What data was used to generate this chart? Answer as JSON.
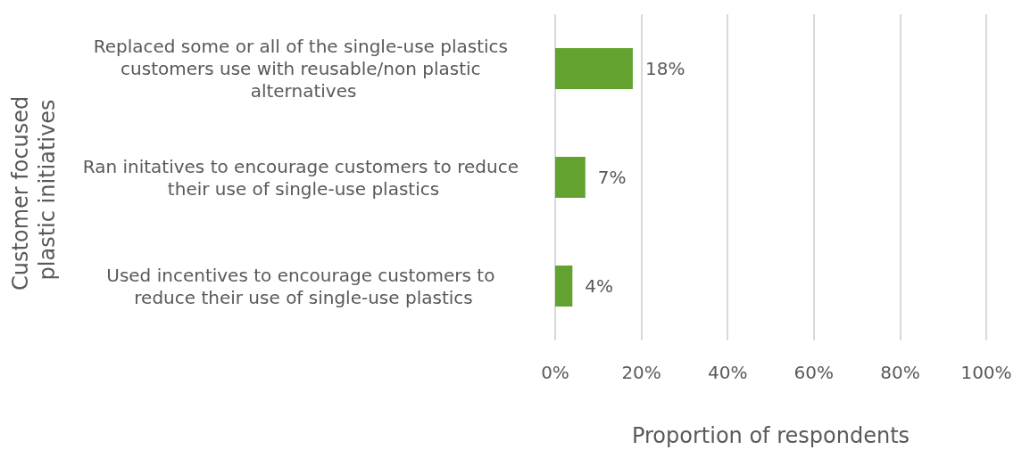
{
  "chart_data": {
    "type": "bar",
    "orientation": "horizontal",
    "categories": [
      "Replaced some or all of the single-use plastics customers use with reusable/non plastic alternatives",
      "Ran initatives to encourage customers to reduce their use of single-use plastics",
      "Used incentives to encourage customers to reduce their use of single-use plastics"
    ],
    "values": [
      18,
      7,
      4
    ],
    "value_labels": [
      "18%",
      "7%",
      "4%"
    ],
    "color": "#63a22f",
    "xlabel": "Proportion of respondents",
    "ylabel": "Customer focused plastic initiatives",
    "xlim": [
      0,
      100
    ],
    "xticks": [
      {
        "value": 0,
        "label": "0%"
      },
      {
        "value": 20,
        "label": "20%"
      },
      {
        "value": 40,
        "label": "40%"
      },
      {
        "value": 60,
        "label": "60%"
      },
      {
        "value": 80,
        "label": "80%"
      },
      {
        "value": 100,
        "label": "100%"
      }
    ],
    "grid": "x"
  }
}
